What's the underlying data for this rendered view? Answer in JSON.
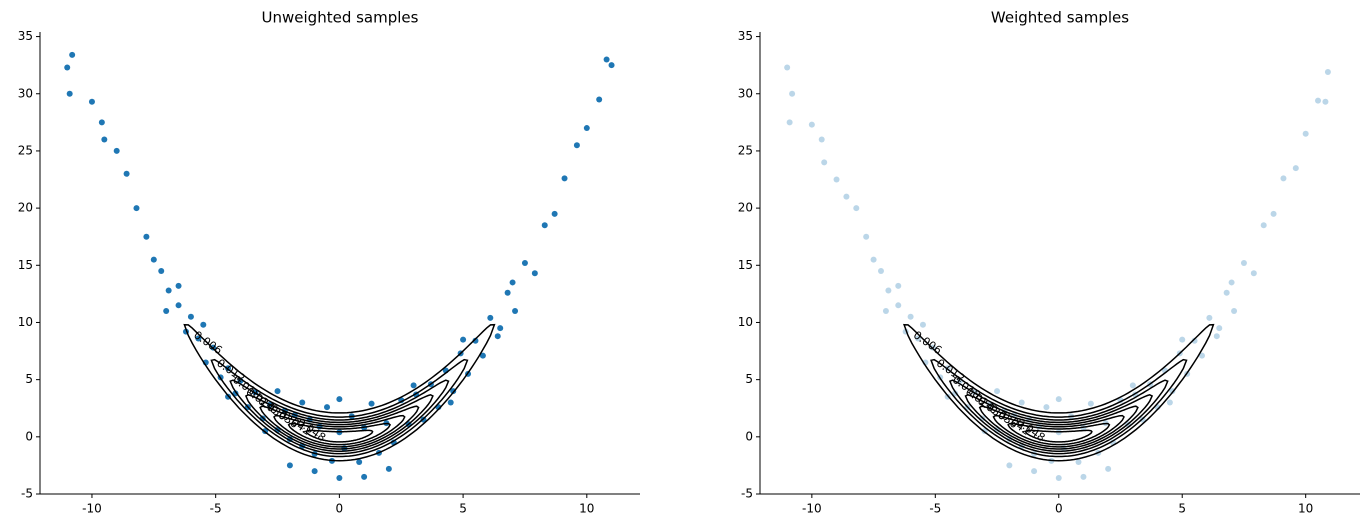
{
  "chart_data": [
    {
      "type": "scatter",
      "title": "Unweighted samples",
      "color": "#1f77b4",
      "opacity": 1,
      "x": [
        -11,
        -10.8,
        -10.9,
        -10,
        -9.6,
        -9.5,
        -9,
        -8.6,
        -8.2,
        -7.8,
        -7.5,
        -7.2,
        -6.9,
        -6.5,
        -6.2,
        -6,
        -5.7,
        -5.4,
        -5.1,
        -4.8,
        -4.5,
        -4.2,
        -4,
        -3.7,
        -3.4,
        -3.1,
        -2.8,
        -2.5,
        -2.2,
        -2,
        -1.8,
        -1.5,
        -1.2,
        -1,
        -0.8,
        -0.5,
        -0.3,
        0,
        0,
        0,
        0.2,
        0.5,
        0.8,
        1,
        1.3,
        1.6,
        1.9,
        2.2,
        2.5,
        2.8,
        3.1,
        3.4,
        3.7,
        4,
        4.3,
        4.6,
        4.9,
        5.2,
        5.5,
        5.8,
        6.1,
        6.4,
        6.8,
        7.1,
        7.5,
        7.9,
        8.3,
        8.7,
        9.1,
        9.6,
        10,
        10.5,
        11,
        10.8,
        -3,
        -2.5,
        -1.5,
        -4.5,
        3,
        2,
        -1,
        4.5,
        -5.5,
        5,
        -6.5,
        6.5,
        -7,
        7,
        1,
        -2
      ],
      "values": [
        32.3,
        33.4,
        30,
        29.3,
        27.5,
        26,
        25,
        23,
        20,
        17.5,
        15.5,
        14.5,
        12.8,
        11.5,
        9.2,
        10.5,
        8.6,
        6.5,
        7.8,
        5.2,
        6,
        3.8,
        4.9,
        2.6,
        3.9,
        1.6,
        2.8,
        0.6,
        2.3,
        -0.2,
        1.9,
        -0.8,
        1.5,
        -1.5,
        0.9,
        2.6,
        -2.1,
        0.4,
        3.3,
        -3.6,
        -1,
        1.8,
        -2.2,
        0.8,
        2.9,
        -1.4,
        1.2,
        -0.5,
        3.2,
        1.1,
        3.7,
        1.5,
        4.6,
        2.6,
        5.8,
        4,
        7.3,
        5.5,
        8.4,
        7.1,
        10.4,
        8.8,
        12.6,
        11,
        15.2,
        14.3,
        18.5,
        19.5,
        22.6,
        25.5,
        27,
        29.5,
        32.5,
        33,
        0.5,
        4,
        3,
        3.5,
        4.5,
        -2.8,
        -3,
        3,
        9.8,
        8.5,
        13.2,
        9.5,
        11,
        13.5,
        -3.5,
        -2.5
      ],
      "xlim": [
        -12.1,
        12.15
      ],
      "ylim": [
        -5,
        35.4
      ],
      "xticks": [
        -10,
        -5,
        0,
        5,
        10
      ],
      "yticks": [
        -5,
        0,
        5,
        10,
        15,
        20,
        25,
        30,
        35
      ],
      "contour_color": "#000000",
      "contour_levels": [
        0.006,
        0.012,
        0.018,
        0.024,
        {
          "value": 0.03,
          "label": "0.030"
        },
        0.036,
        0.042,
        0.048
      ]
    },
    {
      "type": "scatter",
      "title": "Weighted samples",
      "color": "#1f77b4",
      "opacity": 0.3,
      "x": [
        -11,
        -10.8,
        -10.9,
        -10,
        -9.6,
        -9.5,
        -9,
        -8.6,
        -8.2,
        -7.8,
        -7.5,
        -7.2,
        -6.9,
        -6.5,
        -6.2,
        -6,
        -5.7,
        -5.4,
        -5.1,
        -4.8,
        -4.5,
        -4.2,
        -4,
        -3.7,
        -3.4,
        -3.1,
        -2.8,
        -2.5,
        -2.2,
        -2,
        -1.8,
        -1.5,
        -1.2,
        -1,
        -0.8,
        -0.5,
        -0.3,
        0,
        0,
        0,
        0.2,
        0.5,
        0.8,
        1,
        1.3,
        1.6,
        1.9,
        2.2,
        2.5,
        2.8,
        3.1,
        3.4,
        3.7,
        4,
        4.3,
        4.6,
        4.9,
        5.2,
        5.5,
        5.8,
        6.1,
        6.4,
        6.8,
        7.1,
        7.5,
        7.9,
        8.3,
        8.7,
        9.1,
        9.6,
        10,
        10.5,
        10.8,
        10.9,
        -3,
        -2.5,
        -1.5,
        -4.5,
        3,
        2,
        -1,
        4.5,
        -5.5,
        5,
        -6.5,
        6.5,
        -7,
        7,
        1,
        -2
      ],
      "values": [
        32.3,
        30,
        27.5,
        27.3,
        26,
        24,
        22.5,
        21,
        20,
        17.5,
        15.5,
        14.5,
        12.8,
        11.5,
        9.2,
        10.5,
        8.6,
        6.5,
        7.8,
        5.2,
        6,
        3.8,
        4.9,
        2.6,
        3.9,
        1.6,
        2.8,
        0.6,
        2.3,
        -0.2,
        1.9,
        -0.8,
        1.5,
        -1.5,
        0.9,
        2.6,
        -2.1,
        0.4,
        3.3,
        -3.6,
        -1,
        1.8,
        -2.2,
        0.8,
        2.9,
        -1.4,
        1.2,
        -0.5,
        3.2,
        1.1,
        3.7,
        1.5,
        4.6,
        2.6,
        5.8,
        4,
        7.3,
        5.5,
        8.4,
        7.1,
        10.4,
        8.8,
        12.6,
        11,
        15.2,
        14.3,
        18.5,
        19.5,
        22.6,
        23.5,
        26.5,
        29.4,
        29.3,
        31.9,
        0.5,
        4,
        3,
        3.5,
        4.5,
        -2.8,
        -3,
        3,
        9.8,
        8.5,
        13.2,
        9.5,
        11,
        13.5,
        -3.5,
        -2.5
      ],
      "xlim": [
        -12.1,
        12.2
      ],
      "ylim": [
        -5,
        35.4
      ],
      "xticks": [
        -10,
        -5,
        0,
        5,
        10
      ],
      "yticks": [
        -5,
        0,
        5,
        10,
        15,
        20,
        25,
        30,
        35
      ],
      "contour_color": "#000000",
      "contour_levels": [
        0.006,
        0.012,
        0.018,
        0.024,
        {
          "value": 0.03,
          "label": "0.030"
        },
        0.036,
        0.042,
        0.048
      ]
    }
  ]
}
